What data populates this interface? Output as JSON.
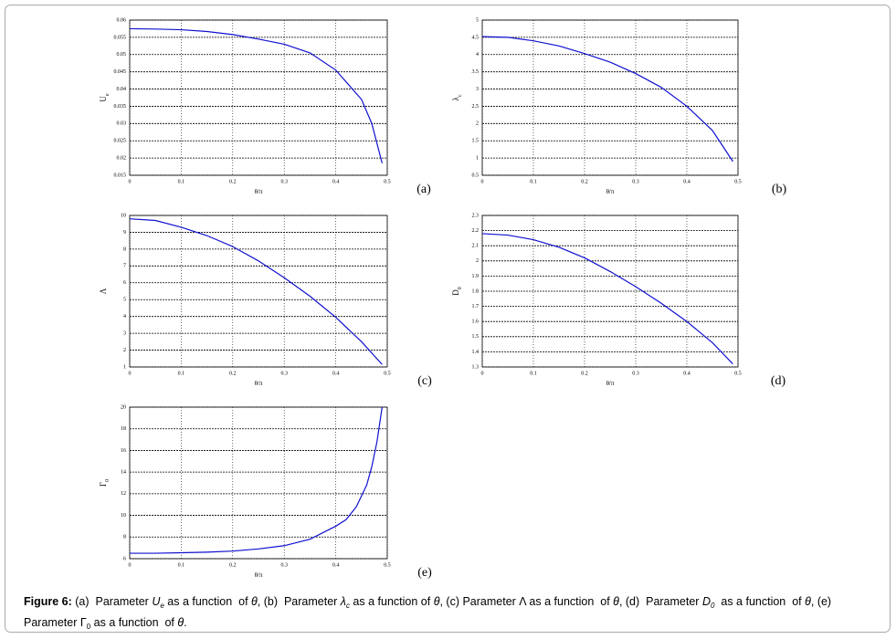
{
  "chart_data": [
    {
      "type": "line",
      "panel_label": "(a)",
      "xlabel": "θ/π",
      "ylabel": "U",
      "ylabel_sub": "e",
      "x": [
        0,
        0.05,
        0.1,
        0.15,
        0.2,
        0.25,
        0.3,
        0.35,
        0.4,
        0.45,
        0.47,
        0.49
      ],
      "values": [
        0.0575,
        0.0574,
        0.0572,
        0.0567,
        0.0558,
        0.0545,
        0.053,
        0.0505,
        0.0455,
        0.037,
        0.03,
        0.0185
      ],
      "color": "#1010d0",
      "xlim": [
        0,
        0.5
      ],
      "xticks": [
        0,
        0.1,
        0.2,
        0.3,
        0.4,
        0.5
      ],
      "ylim": [
        0.015,
        0.06
      ],
      "yticks": [
        0.015,
        0.02,
        0.025,
        0.03,
        0.035,
        0.04,
        0.045,
        0.05,
        0.055,
        0.06
      ],
      "grid": true
    },
    {
      "type": "line",
      "panel_label": "(b)",
      "xlabel": "θ/π",
      "ylabel": "λ",
      "ylabel_sub": "c",
      "x": [
        0,
        0.05,
        0.1,
        0.15,
        0.2,
        0.25,
        0.3,
        0.35,
        0.4,
        0.45,
        0.49
      ],
      "values": [
        4.52,
        4.5,
        4.4,
        4.25,
        4.03,
        3.78,
        3.45,
        3.05,
        2.5,
        1.8,
        0.9
      ],
      "color": "#1010d0",
      "xlim": [
        0,
        0.5
      ],
      "xticks": [
        0,
        0.1,
        0.2,
        0.3,
        0.4,
        0.5
      ],
      "ylim": [
        0.5,
        5
      ],
      "yticks": [
        0.5,
        1,
        1.5,
        2,
        2.5,
        3,
        3.5,
        4,
        4.5,
        5
      ],
      "grid": true
    },
    {
      "type": "line",
      "panel_label": "(c)",
      "xlabel": "θ/π",
      "ylabel": "Λ",
      "x": [
        0,
        0.05,
        0.1,
        0.15,
        0.2,
        0.25,
        0.3,
        0.35,
        0.4,
        0.45,
        0.49
      ],
      "values": [
        9.8,
        9.7,
        9.3,
        8.8,
        8.15,
        7.3,
        6.3,
        5.2,
        3.95,
        2.5,
        1.15
      ],
      "color": "#1010d0",
      "xlim": [
        0,
        0.5
      ],
      "xticks": [
        0,
        0.1,
        0.2,
        0.3,
        0.4,
        0.5
      ],
      "ylim": [
        1,
        10
      ],
      "yticks": [
        1,
        2,
        3,
        4,
        5,
        6,
        7,
        8,
        9,
        10
      ],
      "grid": true
    },
    {
      "type": "line",
      "panel_label": "(d)",
      "xlabel": "θ/π",
      "ylabel": "D",
      "ylabel_sub": "0",
      "x": [
        0,
        0.05,
        0.1,
        0.15,
        0.2,
        0.25,
        0.3,
        0.35,
        0.4,
        0.45,
        0.49
      ],
      "values": [
        2.18,
        2.17,
        2.14,
        2.09,
        2.02,
        1.93,
        1.83,
        1.72,
        1.6,
        1.46,
        1.32
      ],
      "color": "#1010d0",
      "xlim": [
        0,
        0.5
      ],
      "xticks": [
        0,
        0.1,
        0.2,
        0.3,
        0.4,
        0.5
      ],
      "ylim": [
        1.3,
        2.3
      ],
      "yticks": [
        1.3,
        1.4,
        1.5,
        1.6,
        1.7,
        1.8,
        1.9,
        2,
        2.1,
        2.2,
        2.3
      ],
      "grid": true
    },
    {
      "type": "line",
      "panel_label": "(e)",
      "xlabel": "θ/π",
      "ylabel": "Γ",
      "ylabel_sub": "0",
      "x": [
        0,
        0.05,
        0.1,
        0.15,
        0.2,
        0.25,
        0.3,
        0.35,
        0.4,
        0.42,
        0.44,
        0.46,
        0.47,
        0.48,
        0.49
      ],
      "values": [
        6.5,
        6.5,
        6.55,
        6.6,
        6.7,
        6.9,
        7.2,
        7.8,
        9.0,
        9.6,
        10.8,
        12.8,
        14.5,
        16.8,
        20
      ],
      "color": "#1010d0",
      "xlim": [
        0,
        0.5
      ],
      "xticks": [
        0,
        0.1,
        0.2,
        0.3,
        0.4,
        0.5
      ],
      "ylim": [
        6,
        20
      ],
      "yticks": [
        6,
        8,
        10,
        12,
        14,
        16,
        18,
        20
      ],
      "grid": true
    }
  ],
  "caption": [
    "Figure 6:",
    " (a)  Parameter ",
    "U",
    "e",
    " as a function  of ",
    "θ",
    ", (b)  Parameter ",
    "λ",
    "c",
    " as a function of ",
    "θ",
    ", (c) Parameter Λ as a function  of ",
    "θ",
    ", (d)  Parameter ",
    "D",
    "0",
    "  as a function  of ",
    "θ",
    ", (e)",
    "Parameter Γ",
    "0",
    " as a function  of ",
    "θ",
    "."
  ]
}
